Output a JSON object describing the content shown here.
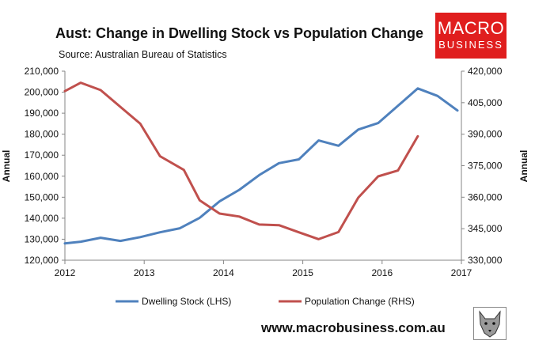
{
  "header": {
    "title": "Aust: Change in Dwelling Stock vs Population Change",
    "source": "Source: Australian Bureau of Statistics"
  },
  "logo": {
    "line1": "MACRO",
    "line2": "BUSINESS",
    "color": "#e01e1e"
  },
  "footer": {
    "website": "www.macrobusiness.com.au"
  },
  "chart_data": {
    "type": "line",
    "title": "Aust: Change in Dwelling Stock vs Population Change",
    "x_range": [
      2012,
      2017
    ],
    "x_ticks": [
      "2012",
      "2013",
      "2014",
      "2015",
      "2016",
      "2017"
    ],
    "y_left": {
      "label": "Annual",
      "range": [
        120000,
        210000
      ],
      "ticks": [
        "120,000",
        "130,000",
        "140,000",
        "150,000",
        "160,000",
        "170,000",
        "180,000",
        "190,000",
        "200,000",
        "210,000"
      ]
    },
    "y_right": {
      "label": "Annual",
      "range": [
        330000,
        420000
      ],
      "ticks": [
        "330,000",
        "345,000",
        "360,000",
        "375,000",
        "390,000",
        "405,000",
        "420,000"
      ]
    },
    "series": [
      {
        "name": "Dwelling Stock (LHS)",
        "axis": "left",
        "color": "#4f81bd",
        "x": [
          2012.0,
          2012.2,
          2012.45,
          2012.7,
          2012.95,
          2013.2,
          2013.45,
          2013.7,
          2013.95,
          2014.2,
          2014.45,
          2014.7,
          2014.95,
          2015.2,
          2015.45,
          2015.7,
          2015.95,
          2016.2,
          2016.45,
          2016.7,
          2016.95
        ],
        "values": [
          128000,
          128800,
          130700,
          129200,
          131000,
          133300,
          135200,
          140200,
          148000,
          153500,
          160500,
          166200,
          168000,
          177000,
          174500,
          182200,
          185300,
          193500,
          201800,
          198200,
          191300
        ]
      },
      {
        "name": "Population Change (RHS)",
        "axis": "right",
        "color": "#c0504d",
        "x": [
          2012.0,
          2012.2,
          2012.45,
          2012.7,
          2012.95,
          2013.2,
          2013.5,
          2013.7,
          2013.95,
          2014.2,
          2014.45,
          2014.7,
          2014.95,
          2015.2,
          2015.45,
          2015.7,
          2015.95,
          2016.2,
          2016.45
        ],
        "values": [
          410500,
          414500,
          411000,
          403000,
          395000,
          379500,
          373000,
          358500,
          352200,
          350800,
          347000,
          346700,
          343300,
          340000,
          343400,
          359800,
          369900,
          372700,
          389000
        ]
      }
    ],
    "legend": {
      "placement": "bottom"
    },
    "grid": false
  }
}
